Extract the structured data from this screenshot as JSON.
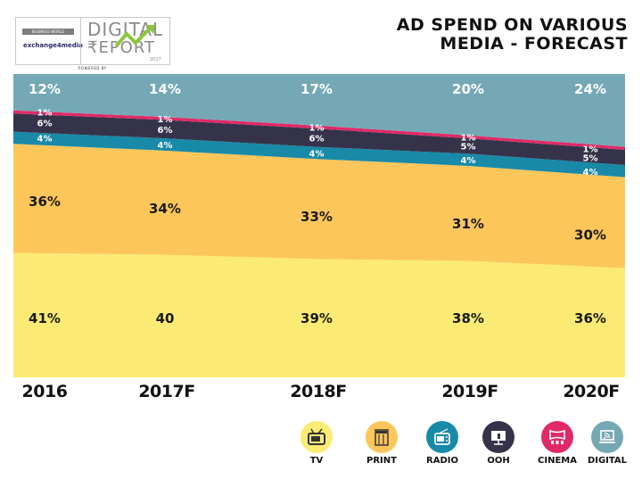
{
  "header": {
    "title_line1": "AD SPEND ON VARIOUS",
    "title_line2": "MEDIA - FORECAST",
    "logo": {
      "network_label": "BUSINESS WORLD NETWORK",
      "exchange_label": "exchange4media",
      "report_word1": "DIGITAL",
      "report_word2": "₹EPORT",
      "report_year": "2017",
      "powered_by": "POWERED BY"
    }
  },
  "colors": {
    "TV": "#fbeb74",
    "PRINT": "#fdc65b",
    "RADIO": "#188aa8",
    "OOH": "#35334a",
    "CINEMA": "#e02a66",
    "DIGITAL": "#74a8b5"
  },
  "chart_data": {
    "type": "area",
    "stacked": true,
    "title": "AD SPEND ON VARIOUS MEDIA - FORECAST",
    "xlabel": "",
    "ylabel": "",
    "categories": [
      "2016",
      "2017F",
      "2018F",
      "2019F",
      "2020F"
    ],
    "series": [
      {
        "name": "TV",
        "values": [
          41,
          40,
          39,
          38,
          36
        ],
        "labels": [
          "41%",
          "40",
          "39%",
          "38%",
          "36%"
        ]
      },
      {
        "name": "PRINT",
        "values": [
          36,
          34,
          33,
          31,
          30
        ],
        "labels": [
          "36%",
          "34%",
          "33%",
          "31%",
          "30%"
        ]
      },
      {
        "name": "RADIO",
        "values": [
          4,
          4,
          4,
          4,
          4
        ],
        "labels": [
          "4%",
          "4%",
          "4%",
          "4%",
          "4%"
        ]
      },
      {
        "name": "OOH",
        "values": [
          6,
          6,
          6,
          5,
          5
        ],
        "labels": [
          "6%",
          "6%",
          "6%",
          "5%",
          "5%"
        ]
      },
      {
        "name": "CINEMA",
        "values": [
          1,
          1,
          1,
          1,
          1
        ],
        "labels": [
          "1%",
          "1%",
          "1%",
          "1%",
          "1%"
        ]
      },
      {
        "name": "DIGITAL",
        "values": [
          12,
          14,
          17,
          20,
          24
        ],
        "labels": [
          "12%",
          "14%",
          "17%",
          "20%",
          "24%"
        ]
      }
    ],
    "ylim": [
      0,
      100
    ],
    "grid": false,
    "legend_position": "bottom-right"
  },
  "legend": [
    {
      "name": "TV",
      "label": "TV",
      "icon": "tv-icon"
    },
    {
      "name": "PRINT",
      "label": "PRINT",
      "icon": "newspaper-icon"
    },
    {
      "name": "RADIO",
      "label": "RADIO",
      "icon": "radio-icon"
    },
    {
      "name": "OOH",
      "label": "OOH",
      "icon": "billboard-icon"
    },
    {
      "name": "CINEMA",
      "label": "CINEMA",
      "icon": "cinema-screen-icon"
    },
    {
      "name": "DIGITAL",
      "label": "DIGITAL",
      "icon": "laptop-wifi-icon"
    }
  ]
}
